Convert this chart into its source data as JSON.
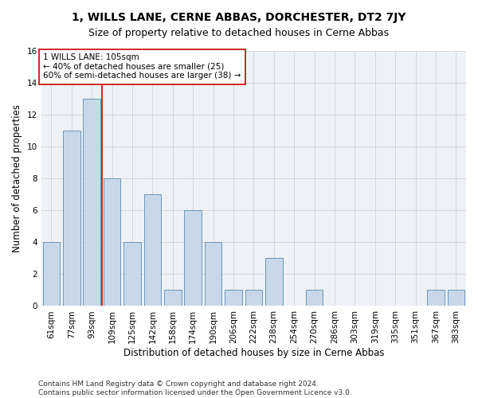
{
  "title": "1, WILLS LANE, CERNE ABBAS, DORCHESTER, DT2 7JY",
  "subtitle": "Size of property relative to detached houses in Cerne Abbas",
  "xlabel": "Distribution of detached houses by size in Cerne Abbas",
  "ylabel": "Number of detached properties",
  "categories": [
    "61sqm",
    "77sqm",
    "93sqm",
    "109sqm",
    "125sqm",
    "142sqm",
    "158sqm",
    "174sqm",
    "190sqm",
    "206sqm",
    "222sqm",
    "238sqm",
    "254sqm",
    "270sqm",
    "286sqm",
    "303sqm",
    "319sqm",
    "335sqm",
    "351sqm",
    "367sqm",
    "383sqm"
  ],
  "values": [
    4,
    11,
    13,
    8,
    4,
    7,
    1,
    6,
    4,
    1,
    1,
    3,
    0,
    1,
    0,
    0,
    0,
    0,
    0,
    1,
    1
  ],
  "bar_color": "#c8d8e8",
  "bar_edge_color": "#5a8ab0",
  "vline_color": "#cc0000",
  "annotation_text": "1 WILLS LANE: 105sqm\n← 40% of detached houses are smaller (25)\n60% of semi-detached houses are larger (38) →",
  "annotation_box_color": "#ffffff",
  "annotation_box_edge": "#cc0000",
  "ylim": [
    0,
    16
  ],
  "yticks": [
    0,
    2,
    4,
    6,
    8,
    10,
    12,
    14,
    16
  ],
  "grid_color": "#cccccc",
  "background_color": "#edf2f7",
  "footer": "Contains HM Land Registry data © Crown copyright and database right 2024.\nContains public sector information licensed under the Open Government Licence v3.0.",
  "title_fontsize": 10,
  "subtitle_fontsize": 9,
  "xlabel_fontsize": 8.5,
  "ylabel_fontsize": 8.5,
  "tick_fontsize": 7.5,
  "annotation_fontsize": 7.5,
  "footer_fontsize": 6.5
}
